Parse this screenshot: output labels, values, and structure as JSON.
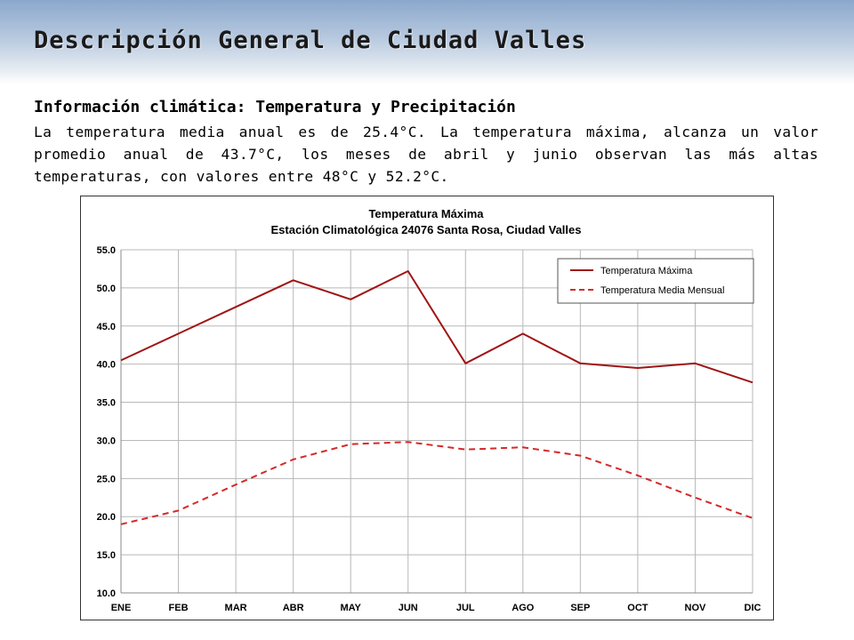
{
  "slide": {
    "title": "Descripción General de Ciudad Valles",
    "subheading": "Información climática: Temperatura y Precipitación",
    "body": "La temperatura media anual es de 25.4°C. La temperatura máxima, alcanza un valor promedio anual de 43.7°C, los meses de abril y junio observan las más altas temperaturas, con valores entre 48°C y 52.2°C."
  },
  "colors": {
    "accent": "#8aa8cc",
    "series_max": "#a01414",
    "series_mean": "#d42a2a",
    "grid": "#b8b8b8"
  },
  "chart_data": {
    "type": "line",
    "title": "Temperatura Máxima",
    "subtitle": "Estación Climatológica 24076 Santa Rosa, Ciudad Valles",
    "categories": [
      "ENE",
      "FEB",
      "MAR",
      "ABR",
      "MAY",
      "JUN",
      "JUL",
      "AGO",
      "SEP",
      "OCT",
      "NOV",
      "DIC"
    ],
    "series": [
      {
        "name": "Temperatura Máxima",
        "style": "solid",
        "values": [
          40.5,
          44.0,
          47.5,
          51.0,
          48.5,
          52.2,
          40.1,
          44.0,
          40.1,
          39.5,
          40.1,
          37.6
        ]
      },
      {
        "name": "Temperatura Media Mensual",
        "style": "dashed",
        "values": [
          19.0,
          20.8,
          24.2,
          27.5,
          29.5,
          29.8,
          28.8,
          29.1,
          28.0,
          25.4,
          22.5,
          19.8
        ]
      }
    ],
    "yticks": [
      "10.0",
      "15.0",
      "20.0",
      "25.0",
      "30.0",
      "35.0",
      "40.0",
      "45.0",
      "50.0",
      "55.0"
    ],
    "ylim": [
      10,
      55
    ],
    "xlabel": "",
    "ylabel": "",
    "grid": true,
    "legend": "top-right"
  }
}
